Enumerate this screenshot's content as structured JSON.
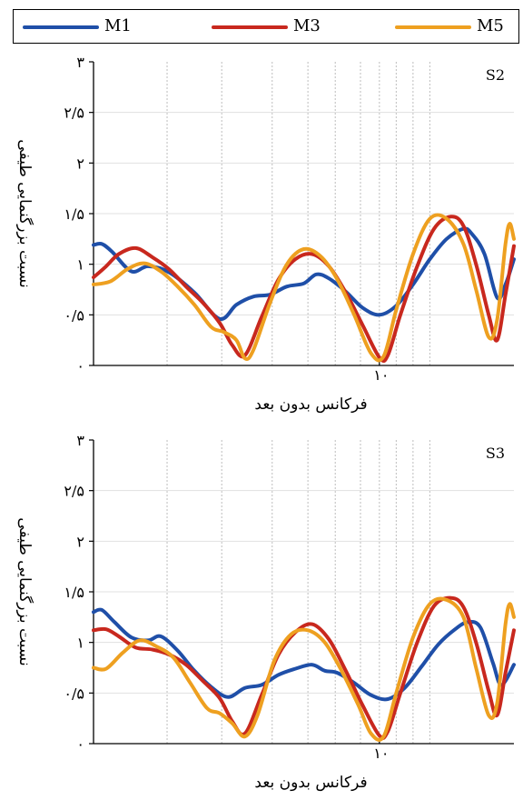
{
  "legend": [
    {
      "name": "M1",
      "color": "#1f4fa8"
    },
    {
      "name": "M3",
      "color": "#c8281e"
    },
    {
      "name": "M5",
      "color": "#eea020"
    }
  ],
  "chart_data": [
    {
      "type": "line",
      "panel_label": "S2",
      "xlabel": "فرکانس بدون بعد",
      "ylabel": "نسبت بزرگنمایی طیفی",
      "x_scale": "log",
      "x_tick_label": "۱۰",
      "yticks": [
        "۰",
        "۰/۵",
        "۱",
        "۱/۵",
        "۲",
        "۲/۵",
        "۳"
      ],
      "ylim": [
        0,
        3
      ],
      "grid": true,
      "series": [
        {
          "name": "M1",
          "color": "#1f4fa8",
          "points": [
            [
              0,
              1.19
            ],
            [
              0.02,
              1.2
            ],
            [
              0.045,
              1.12
            ],
            [
              0.09,
              0.93
            ],
            [
              0.13,
              0.98
            ],
            [
              0.18,
              0.92
            ],
            [
              0.24,
              0.72
            ],
            [
              0.3,
              0.46
            ],
            [
              0.34,
              0.6
            ],
            [
              0.38,
              0.68
            ],
            [
              0.42,
              0.7
            ],
            [
              0.46,
              0.78
            ],
            [
              0.5,
              0.81
            ],
            [
              0.53,
              0.9
            ],
            [
              0.56,
              0.86
            ],
            [
              0.6,
              0.73
            ],
            [
              0.64,
              0.57
            ],
            [
              0.68,
              0.5
            ],
            [
              0.72,
              0.59
            ],
            [
              0.76,
              0.8
            ],
            [
              0.8,
              1.05
            ],
            [
              0.84,
              1.25
            ],
            [
              0.88,
              1.35
            ],
            [
              0.9,
              1.3
            ],
            [
              0.93,
              1.1
            ],
            [
              0.96,
              0.67
            ],
            [
              0.98,
              0.8
            ],
            [
              1,
              1.05
            ]
          ]
        },
        {
          "name": "M3",
          "color": "#c8281e",
          "points": [
            [
              0,
              0.87
            ],
            [
              0.03,
              0.98
            ],
            [
              0.06,
              1.1
            ],
            [
              0.1,
              1.16
            ],
            [
              0.14,
              1.07
            ],
            [
              0.18,
              0.95
            ],
            [
              0.22,
              0.78
            ],
            [
              0.26,
              0.62
            ],
            [
              0.3,
              0.42
            ],
            [
              0.33,
              0.2
            ],
            [
              0.36,
              0.1
            ],
            [
              0.4,
              0.48
            ],
            [
              0.44,
              0.85
            ],
            [
              0.48,
              1.05
            ],
            [
              0.52,
              1.1
            ],
            [
              0.56,
              0.98
            ],
            [
              0.6,
              0.72
            ],
            [
              0.64,
              0.4
            ],
            [
              0.68,
              0.08
            ],
            [
              0.7,
              0.1
            ],
            [
              0.73,
              0.5
            ],
            [
              0.77,
              0.98
            ],
            [
              0.81,
              1.35
            ],
            [
              0.85,
              1.47
            ],
            [
              0.88,
              1.38
            ],
            [
              0.91,
              1.0
            ],
            [
              0.94,
              0.5
            ],
            [
              0.96,
              0.25
            ],
            [
              0.98,
              0.7
            ],
            [
              1,
              1.18
            ]
          ]
        },
        {
          "name": "M5",
          "color": "#eea020",
          "points": [
            [
              0,
              0.8
            ],
            [
              0.04,
              0.83
            ],
            [
              0.08,
              0.95
            ],
            [
              0.12,
              1.01
            ],
            [
              0.16,
              0.93
            ],
            [
              0.2,
              0.78
            ],
            [
              0.24,
              0.6
            ],
            [
              0.28,
              0.38
            ],
            [
              0.31,
              0.33
            ],
            [
              0.34,
              0.25
            ],
            [
              0.36,
              0.07
            ],
            [
              0.38,
              0.15
            ],
            [
              0.42,
              0.62
            ],
            [
              0.46,
              1.0
            ],
            [
              0.5,
              1.15
            ],
            [
              0.54,
              1.08
            ],
            [
              0.58,
              0.85
            ],
            [
              0.62,
              0.5
            ],
            [
              0.66,
              0.12
            ],
            [
              0.69,
              0.09
            ],
            [
              0.72,
              0.55
            ],
            [
              0.76,
              1.1
            ],
            [
              0.8,
              1.45
            ],
            [
              0.84,
              1.45
            ],
            [
              0.88,
              1.2
            ],
            [
              0.91,
              0.75
            ],
            [
              0.94,
              0.28
            ],
            [
              0.96,
              0.45
            ],
            [
              0.98,
              1.2
            ],
            [
              0.99,
              1.4
            ],
            [
              1,
              1.25
            ]
          ]
        }
      ]
    },
    {
      "type": "line",
      "panel_label": "S3",
      "xlabel": "فرکانس بدون بعد",
      "ylabel": "نسبت بزرگنمایی طیفی",
      "x_scale": "log",
      "x_tick_label": "۱۰",
      "yticks": [
        "۰",
        "۰/۵",
        "۱",
        "۱/۵",
        "۲",
        "۲/۵",
        "۳"
      ],
      "ylim": [
        0,
        3
      ],
      "grid": true,
      "series": [
        {
          "name": "M1",
          "color": "#1f4fa8",
          "points": [
            [
              0,
              1.3
            ],
            [
              0.02,
              1.32
            ],
            [
              0.05,
              1.2
            ],
            [
              0.09,
              1.05
            ],
            [
              0.13,
              1.02
            ],
            [
              0.16,
              1.06
            ],
            [
              0.2,
              0.92
            ],
            [
              0.24,
              0.72
            ],
            [
              0.28,
              0.56
            ],
            [
              0.32,
              0.46
            ],
            [
              0.36,
              0.55
            ],
            [
              0.4,
              0.58
            ],
            [
              0.44,
              0.68
            ],
            [
              0.48,
              0.74
            ],
            [
              0.52,
              0.78
            ],
            [
              0.55,
              0.72
            ],
            [
              0.58,
              0.7
            ],
            [
              0.62,
              0.6
            ],
            [
              0.66,
              0.48
            ],
            [
              0.7,
              0.44
            ],
            [
              0.74,
              0.55
            ],
            [
              0.78,
              0.76
            ],
            [
              0.82,
              0.98
            ],
            [
              0.86,
              1.13
            ],
            [
              0.89,
              1.2
            ],
            [
              0.92,
              1.15
            ],
            [
              0.95,
              0.8
            ],
            [
              0.97,
              0.58
            ],
            [
              1,
              0.78
            ]
          ]
        },
        {
          "name": "M3",
          "color": "#c8281e",
          "points": [
            [
              0,
              1.12
            ],
            [
              0.03,
              1.13
            ],
            [
              0.06,
              1.06
            ],
            [
              0.1,
              0.95
            ],
            [
              0.14,
              0.93
            ],
            [
              0.18,
              0.88
            ],
            [
              0.22,
              0.78
            ],
            [
              0.26,
              0.62
            ],
            [
              0.3,
              0.45
            ],
            [
              0.33,
              0.22
            ],
            [
              0.36,
              0.1
            ],
            [
              0.4,
              0.48
            ],
            [
              0.44,
              0.88
            ],
            [
              0.48,
              1.1
            ],
            [
              0.52,
              1.18
            ],
            [
              0.56,
              1.03
            ],
            [
              0.6,
              0.72
            ],
            [
              0.64,
              0.38
            ],
            [
              0.68,
              0.08
            ],
            [
              0.7,
              0.12
            ],
            [
              0.73,
              0.5
            ],
            [
              0.77,
              1.0
            ],
            [
              0.81,
              1.36
            ],
            [
              0.85,
              1.44
            ],
            [
              0.88,
              1.35
            ],
            [
              0.91,
              1.0
            ],
            [
              0.94,
              0.52
            ],
            [
              0.96,
              0.28
            ],
            [
              0.98,
              0.7
            ],
            [
              1,
              1.12
            ]
          ]
        },
        {
          "name": "M5",
          "color": "#eea020",
          "points": [
            [
              0,
              0.75
            ],
            [
              0.03,
              0.74
            ],
            [
              0.07,
              0.9
            ],
            [
              0.11,
              1.02
            ],
            [
              0.15,
              0.96
            ],
            [
              0.19,
              0.85
            ],
            [
              0.23,
              0.6
            ],
            [
              0.27,
              0.35
            ],
            [
              0.3,
              0.3
            ],
            [
              0.33,
              0.2
            ],
            [
              0.36,
              0.07
            ],
            [
              0.39,
              0.28
            ],
            [
              0.43,
              0.82
            ],
            [
              0.47,
              1.08
            ],
            [
              0.51,
              1.12
            ],
            [
              0.55,
              1.0
            ],
            [
              0.59,
              0.72
            ],
            [
              0.63,
              0.38
            ],
            [
              0.66,
              0.1
            ],
            [
              0.69,
              0.07
            ],
            [
              0.72,
              0.5
            ],
            [
              0.76,
              1.05
            ],
            [
              0.8,
              1.38
            ],
            [
              0.84,
              1.42
            ],
            [
              0.88,
              1.25
            ],
            [
              0.91,
              0.75
            ],
            [
              0.94,
              0.28
            ],
            [
              0.96,
              0.4
            ],
            [
              0.98,
              1.18
            ],
            [
              0.99,
              1.38
            ],
            [
              1,
              1.25
            ]
          ]
        }
      ]
    }
  ]
}
